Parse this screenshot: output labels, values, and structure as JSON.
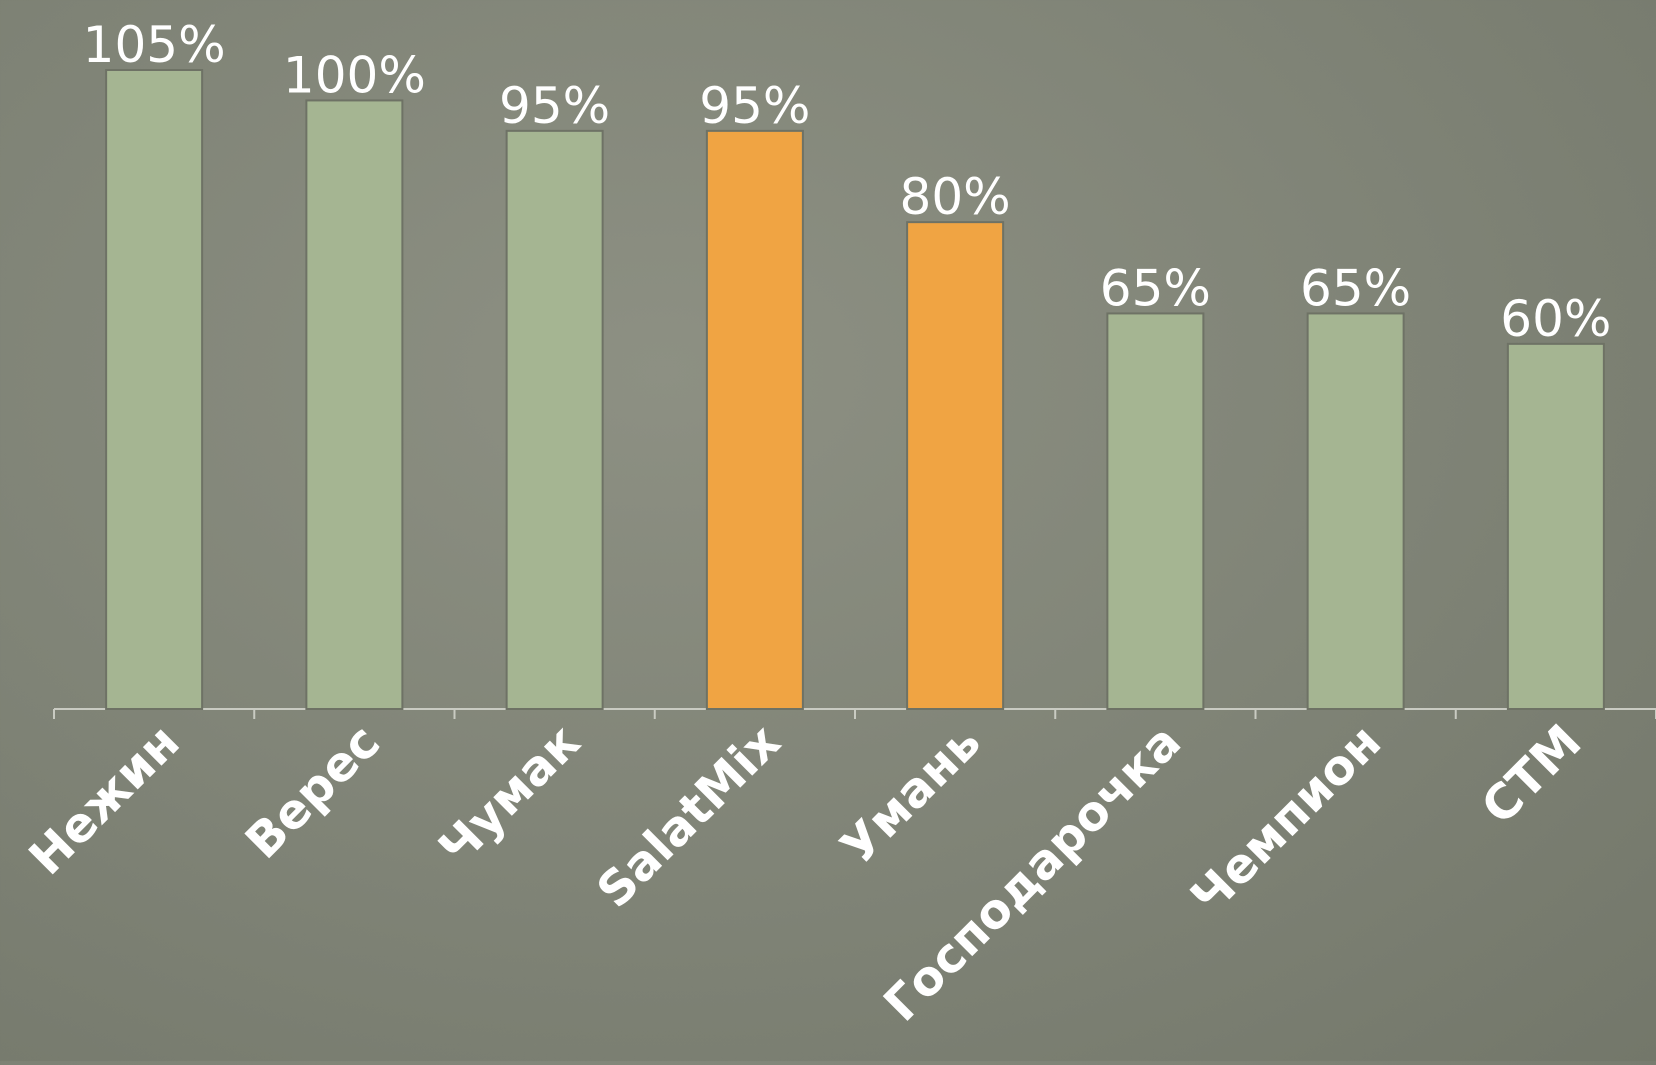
{
  "chart_data": {
    "type": "bar",
    "title": "",
    "xlabel": "",
    "ylabel": "",
    "categories": [
      "Нежин",
      "Верес",
      "Чумак",
      "SalatMix",
      "Умань",
      "Господарочка",
      "Чемпион",
      "СТМ"
    ],
    "values": [
      105,
      100,
      95,
      95,
      80,
      65,
      65,
      60
    ],
    "value_labels": [
      "105%",
      "100%",
      "95%",
      "95%",
      "80%",
      "65%",
      "65%",
      "60%"
    ],
    "unit": "%",
    "ylim": [
      0,
      105
    ],
    "grid": false,
    "legend": "none",
    "highlighted": [
      "SalatMix",
      "Умань"
    ],
    "colors": {
      "default_bar": "#a5b592",
      "highlight_bar": "#f0a443",
      "background": "#7f8376",
      "text": "#ffffff",
      "axis": "#c9cbc2"
    }
  }
}
